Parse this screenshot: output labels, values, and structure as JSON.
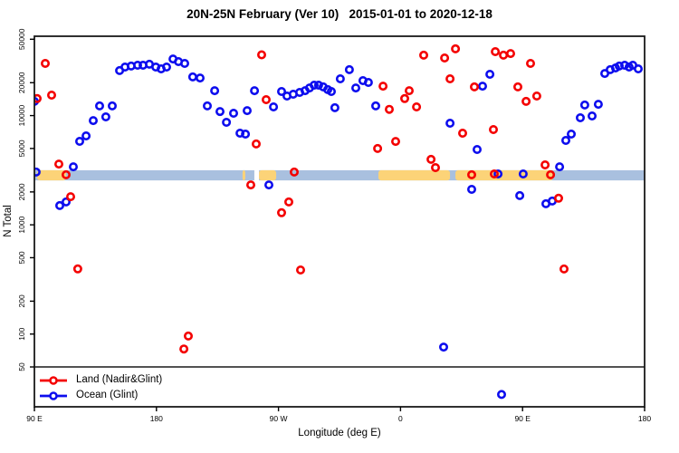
{
  "chart_data": {
    "type": "scatter",
    "title": "20N-25N February (Ver 10)   2015-01-01 to 2020-12-18",
    "xlabel": "Longitude (deg E)",
    "ylabel": "N Total",
    "x_axis": {
      "note": "longitude increasing eastward starting at 90E, wrapping across the dateline",
      "x_unit": "degrees east of 90E along axis",
      "span_deg": 450,
      "tick_positions_deg": [
        0,
        90,
        180,
        270,
        360,
        450
      ],
      "tick_labels": [
        "90 E",
        "180",
        "90 W",
        "0",
        "90 E",
        "180"
      ]
    },
    "y_axis": {
      "scale": "log",
      "ticks": [
        50,
        100,
        200,
        500,
        1000,
        2000,
        5000,
        10000,
        20000,
        50000
      ],
      "top_tick": 50000,
      "grid": false
    },
    "threshold_line": {
      "n_value": 50,
      "color": "#3a3a3a"
    },
    "band": {
      "description": "horizontal reference band across full longitude range",
      "n_range": [
        2550,
        3160
      ],
      "base_color": "#a9c0df",
      "highlight_color": "#fcd378",
      "highlight_segments_deg": [
        [
          2,
          23.4
        ],
        [
          153.5,
          155.5
        ],
        [
          165.6,
          178.3
        ],
        [
          253.7,
          306.5
        ],
        [
          310.5,
          382.5
        ]
      ],
      "gap_segments_deg": [
        [
          162.2,
          165.6
        ]
      ]
    },
    "legend": {
      "position": "bottom-left inside plot",
      "items": [
        {
          "label": "Land (Nadir&Glint)",
          "color": "#f40000"
        },
        {
          "label": "Ocean (Glint)",
          "color": "#0d0dee"
        }
      ]
    },
    "series": [
      {
        "name": "Land (Nadir&Glint)",
        "color": "#f40000",
        "points": [
          [
            8.0,
            30000
          ],
          [
            2.0,
            14300
          ],
          [
            12.7,
            15400
          ],
          [
            18.0,
            3600
          ],
          [
            23.4,
            2870
          ],
          [
            26.7,
            1810
          ],
          [
            32.0,
            395
          ],
          [
            110.2,
            73
          ],
          [
            113.5,
            96
          ],
          [
            167.6,
            36000
          ],
          [
            170.9,
            14000
          ],
          [
            163.6,
            5500
          ],
          [
            159.6,
            2320
          ],
          [
            187.6,
            1620
          ],
          [
            182.3,
            1290
          ],
          [
            191.6,
            3040
          ],
          [
            196.3,
            386
          ],
          [
            253.1,
            5000
          ],
          [
            257.1,
            18600
          ],
          [
            261.7,
            11400
          ],
          [
            266.4,
            5800
          ],
          [
            273.1,
            14300
          ],
          [
            276.4,
            16900
          ],
          [
            281.8,
            12000
          ],
          [
            287.1,
            35700
          ],
          [
            292.5,
            3970
          ],
          [
            295.8,
            3340
          ],
          [
            302.5,
            33700
          ],
          [
            306.5,
            21700
          ],
          [
            310.5,
            40800
          ],
          [
            315.8,
            6900
          ],
          [
            322.5,
            2870
          ],
          [
            324.5,
            18300
          ],
          [
            338.5,
            7450
          ],
          [
            339.2,
            2920
          ],
          [
            339.9,
            38500
          ],
          [
            345.9,
            35700
          ],
          [
            351.2,
            37000
          ],
          [
            356.5,
            18300
          ],
          [
            362.6,
            13500
          ],
          [
            365.9,
            30000
          ],
          [
            370.5,
            15100
          ],
          [
            376.6,
            3540
          ],
          [
            380.6,
            2870
          ],
          [
            386.6,
            1750
          ],
          [
            390.6,
            394
          ]
        ]
      },
      {
        "name": "Ocean (Glint)",
        "color": "#0d0dee",
        "points": [
          [
            0,
            13500
          ],
          [
            1.3,
            3040
          ],
          [
            28.7,
            3400
          ],
          [
            18.7,
            1500
          ],
          [
            23.4,
            1620
          ],
          [
            33.4,
            5810
          ],
          [
            38.1,
            6520
          ],
          [
            43.4,
            9000
          ],
          [
            48.1,
            12250
          ],
          [
            52.7,
            9730
          ],
          [
            57.4,
            12250
          ],
          [
            62.8,
            25800
          ],
          [
            66.8,
            27800
          ],
          [
            71.4,
            28400
          ],
          [
            76.1,
            28900
          ],
          [
            80.1,
            28900
          ],
          [
            84.8,
            29500
          ],
          [
            89.5,
            27800
          ],
          [
            93.5,
            26800
          ],
          [
            97.5,
            27800
          ],
          [
            102.2,
            33000
          ],
          [
            106.2,
            31200
          ],
          [
            110.8,
            30000
          ],
          [
            116.8,
            22600
          ],
          [
            122.2,
            22100
          ],
          [
            127.5,
            12250
          ],
          [
            132.9,
            16900
          ],
          [
            136.9,
            10900
          ],
          [
            141.6,
            8680
          ],
          [
            146.9,
            10500
          ],
          [
            151.6,
            6900
          ],
          [
            155.6,
            6770
          ],
          [
            156.9,
            11100
          ],
          [
            162.3,
            16900
          ],
          [
            172.9,
            2320
          ],
          [
            176.3,
            12000
          ],
          [
            182.3,
            16600
          ],
          [
            186.3,
            15100
          ],
          [
            190.9,
            15700
          ],
          [
            195.6,
            16300
          ],
          [
            199.6,
            16900
          ],
          [
            202.9,
            17900
          ],
          [
            206.3,
            19000
          ],
          [
            209.6,
            19000
          ],
          [
            213.0,
            18300
          ],
          [
            216.3,
            17300
          ],
          [
            219.0,
            16600
          ],
          [
            221.6,
            11800
          ],
          [
            225.6,
            21700
          ],
          [
            232.3,
            26300
          ],
          [
            237.0,
            17900
          ],
          [
            242.3,
            20900
          ],
          [
            246.3,
            20100
          ],
          [
            251.7,
            12250
          ],
          [
            301.8,
            76
          ],
          [
            306.5,
            8510
          ],
          [
            322.5,
            2110
          ],
          [
            326.5,
            4890
          ],
          [
            330.5,
            18600
          ],
          [
            335.9,
            23900
          ],
          [
            341.9,
            2920
          ],
          [
            344.5,
            28
          ],
          [
            357.9,
            1850
          ],
          [
            360.5,
            2920
          ],
          [
            377.2,
            1560
          ],
          [
            381.9,
            1650
          ],
          [
            387.3,
            3400
          ],
          [
            391.9,
            5920
          ],
          [
            395.9,
            6770
          ],
          [
            402.6,
            9550
          ],
          [
            405.9,
            12500
          ],
          [
            411.3,
            9920
          ],
          [
            415.9,
            12700
          ],
          [
            420.6,
            24300
          ],
          [
            424.6,
            26300
          ],
          [
            428.6,
            27300
          ],
          [
            431.3,
            28400
          ],
          [
            435.3,
            28900
          ],
          [
            438.6,
            27800
          ],
          [
            441.3,
            28900
          ],
          [
            445.3,
            26800
          ]
        ]
      }
    ]
  }
}
